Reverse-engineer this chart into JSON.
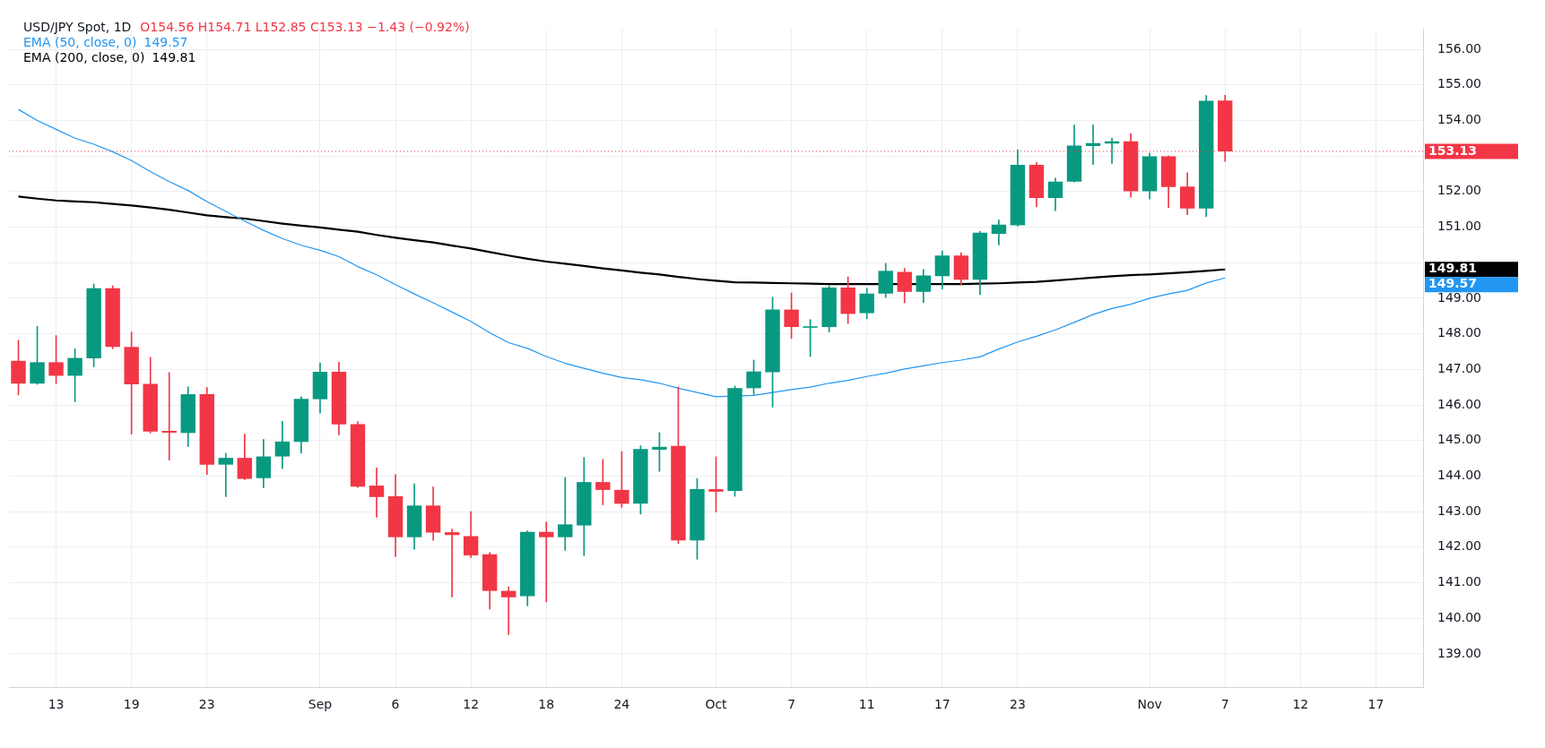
{
  "chart_data": {
    "type": "candlestick",
    "title": "USD/JPY Spot, 1D",
    "subtitle": "O154.56 H154.71 L152.85 C153.13 −1.43 (−0.92%)",
    "categories": [
      null,
      null,
      "13",
      null,
      null,
      null,
      "19",
      null,
      null,
      null,
      "23",
      null,
      null,
      null,
      null,
      null,
      "Sep",
      null,
      null,
      null,
      "6",
      null,
      null,
      null,
      "12",
      null,
      null,
      null,
      "18",
      null,
      null,
      null,
      "24",
      null,
      null,
      null,
      null,
      "Oct",
      null,
      null,
      null,
      "7",
      null,
      null,
      null,
      "11",
      null,
      null,
      null,
      "17",
      null,
      null,
      null,
      "23",
      null,
      null,
      null,
      null,
      null,
      null,
      "Nov",
      null,
      null,
      null,
      "7",
      null,
      null,
      null,
      "12",
      null,
      null,
      null,
      "17",
      null,
      null
    ],
    "ohlc": [
      [
        147.24,
        147.82,
        146.28,
        146.6
      ],
      [
        146.6,
        148.21,
        146.58,
        147.2
      ],
      [
        147.2,
        147.95,
        146.6,
        146.82
      ],
      [
        146.82,
        147.58,
        146.09,
        147.32
      ],
      [
        147.31,
        149.4,
        147.07,
        149.28
      ],
      [
        149.28,
        149.35,
        147.58,
        147.63
      ],
      [
        147.63,
        148.05,
        145.18,
        146.58
      ],
      [
        146.59,
        147.34,
        145.21,
        145.25
      ],
      [
        145.27,
        146.91,
        144.45,
        145.22
      ],
      [
        145.21,
        146.51,
        144.83,
        146.3
      ],
      [
        146.3,
        146.49,
        144.04,
        144.32
      ],
      [
        144.32,
        144.64,
        143.42,
        144.51
      ],
      [
        144.51,
        145.18,
        143.9,
        143.92
      ],
      [
        143.94,
        145.03,
        143.67,
        144.55
      ],
      [
        144.55,
        145.54,
        144.21,
        144.97
      ],
      [
        144.96,
        146.23,
        144.64,
        146.17
      ],
      [
        146.16,
        147.18,
        145.77,
        146.93
      ],
      [
        146.93,
        147.2,
        145.16,
        145.45
      ],
      [
        145.46,
        145.53,
        143.68,
        143.7
      ],
      [
        143.73,
        144.23,
        142.84,
        143.41
      ],
      [
        143.43,
        144.04,
        141.74,
        142.28
      ],
      [
        142.28,
        143.78,
        141.94,
        143.17
      ],
      [
        143.17,
        143.69,
        142.19,
        142.41
      ],
      [
        142.42,
        142.51,
        140.6,
        142.34
      ],
      [
        142.31,
        143.0,
        141.71,
        141.77
      ],
      [
        141.8,
        141.85,
        140.26,
        140.77
      ],
      [
        140.77,
        140.88,
        139.54,
        140.59
      ],
      [
        140.62,
        142.46,
        140.35,
        142.43
      ],
      [
        142.43,
        142.71,
        140.46,
        142.28
      ],
      [
        142.28,
        143.96,
        141.91,
        142.64
      ],
      [
        142.61,
        144.52,
        141.76,
        143.83
      ],
      [
        143.83,
        144.47,
        143.19,
        143.61
      ],
      [
        143.61,
        144.69,
        143.12,
        143.22
      ],
      [
        143.22,
        144.85,
        142.93,
        144.76
      ],
      [
        144.74,
        145.22,
        144.13,
        144.82
      ],
      [
        144.85,
        146.51,
        142.1,
        142.19
      ],
      [
        142.19,
        143.93,
        141.66,
        143.63
      ],
      [
        143.63,
        144.54,
        142.99,
        143.56
      ],
      [
        143.58,
        146.53,
        143.43,
        146.47
      ],
      [
        146.47,
        147.26,
        146.29,
        146.94
      ],
      [
        146.92,
        149.03,
        145.94,
        148.68
      ],
      [
        148.68,
        149.15,
        147.87,
        148.19
      ],
      [
        148.17,
        148.4,
        147.36,
        148.21
      ],
      [
        148.19,
        149.35,
        148.05,
        149.3
      ],
      [
        149.3,
        149.6,
        148.29,
        148.56
      ],
      [
        148.58,
        149.28,
        148.42,
        149.13
      ],
      [
        149.13,
        149.98,
        149.02,
        149.77
      ],
      [
        149.74,
        149.84,
        148.87,
        149.18
      ],
      [
        149.18,
        149.81,
        148.88,
        149.64
      ],
      [
        149.62,
        150.33,
        149.26,
        150.2
      ],
      [
        150.2,
        150.28,
        149.38,
        149.52
      ],
      [
        149.52,
        150.88,
        149.1,
        150.84
      ],
      [
        150.81,
        151.2,
        150.5,
        151.07
      ],
      [
        151.05,
        153.18,
        151.03,
        152.75
      ],
      [
        152.75,
        152.82,
        151.57,
        151.82
      ],
      [
        151.82,
        152.38,
        151.46,
        152.28
      ],
      [
        152.28,
        153.87,
        152.27,
        153.29
      ],
      [
        153.28,
        153.87,
        152.76,
        153.36
      ],
      [
        153.35,
        153.5,
        152.79,
        153.41
      ],
      [
        153.41,
        153.63,
        151.84,
        152.01
      ],
      [
        152.01,
        153.08,
        151.79,
        152.99
      ],
      [
        152.99,
        153.0,
        151.55,
        152.13
      ],
      [
        152.14,
        152.53,
        151.35,
        151.52
      ],
      [
        151.52,
        154.7,
        151.3,
        154.55
      ],
      [
        154.56,
        154.71,
        152.85,
        153.13
      ],
      null,
      null,
      null,
      null,
      null,
      null,
      null,
      null,
      null,
      null
    ],
    "colors": [
      "#f23645",
      "#089981",
      "#f23645",
      "#089981",
      "#089981",
      "#f23645",
      "#f23645",
      "#f23645",
      "#f23645",
      "#089981",
      "#f23645",
      "#089981",
      "#f23645",
      "#089981",
      "#089981",
      "#089981",
      "#089981",
      "#f23645",
      "#f23645",
      "#f23645",
      "#f23645",
      "#089981",
      "#f23645",
      "#f23645",
      "#f23645",
      "#f23645",
      "#f23645",
      "#089981",
      "#f23645",
      "#089981",
      "#089981",
      "#f23645",
      "#f23645",
      "#089981",
      "#089981",
      "#f23645",
      "#089981",
      "#f23645",
      "#089981",
      "#089981",
      "#089981",
      "#f23645",
      "#089981",
      "#089981",
      "#f23645",
      "#089981",
      "#089981",
      "#f23645",
      "#089981",
      "#089981",
      "#f23645",
      "#089981",
      "#089981",
      "#089981",
      "#f23645",
      "#089981",
      "#089981",
      "#089981",
      "#089981",
      "#f23645",
      "#089981",
      "#f23645",
      "#f23645",
      "#089981",
      "#f23645",
      null,
      null,
      null,
      null,
      null,
      null,
      null,
      null,
      null,
      null
    ],
    "series": [
      {
        "name": "EMA (50, close, 0)",
        "type": "line",
        "color": "#2196f3",
        "values": [
          154.31,
          154.0,
          153.75,
          153.5,
          153.33,
          153.12,
          152.87,
          152.56,
          152.28,
          152.03,
          151.72,
          151.44,
          151.17,
          150.91,
          150.68,
          150.49,
          150.35,
          150.17,
          149.89,
          149.66,
          149.38,
          149.12,
          148.87,
          148.61,
          148.35,
          148.03,
          147.75,
          147.59,
          147.36,
          147.17,
          147.03,
          146.89,
          146.77,
          146.71,
          146.61,
          146.47,
          146.35,
          146.23,
          null,
          146.27,
          146.35,
          146.43,
          146.5,
          146.61,
          146.69,
          146.8,
          146.89,
          147.01,
          147.1,
          147.19,
          147.26,
          147.35,
          147.57,
          147.77,
          147.93,
          148.11,
          148.32,
          148.54,
          148.71,
          148.83,
          149.0,
          149.12,
          149.22,
          149.43,
          149.57,
          null,
          null,
          null,
          null,
          null,
          null,
          null,
          null,
          null,
          null
        ]
      },
      {
        "name": "EMA (200, close, 0)",
        "type": "line",
        "color": "#000000",
        "values": [
          151.86,
          151.8,
          151.75,
          151.72,
          151.7,
          151.65,
          151.61,
          151.55,
          151.49,
          151.41,
          151.33,
          151.28,
          151.24,
          151.17,
          151.1,
          151.04,
          150.99,
          150.93,
          150.87,
          150.78,
          150.7,
          150.63,
          150.57,
          150.48,
          150.4,
          150.3,
          150.2,
          150.11,
          150.03,
          149.97,
          149.91,
          149.84,
          149.78,
          149.72,
          149.67,
          149.6,
          149.54,
          149.49,
          149.45,
          149.44,
          149.43,
          149.42,
          149.41,
          149.4,
          149.4,
          149.4,
          null,
          null,
          null,
          149.4,
          149.4,
          149.41,
          149.42,
          149.44,
          149.46,
          149.5,
          149.54,
          149.58,
          149.62,
          149.65,
          149.67,
          149.7,
          149.73,
          149.77,
          149.81,
          null,
          null,
          null,
          null,
          null,
          null,
          null,
          null,
          null,
          null
        ]
      }
    ],
    "ylim": [
      138.06,
      156.57
    ],
    "yticks": [
      {
        "value": 139,
        "label": "139.00"
      },
      {
        "value": 140,
        "label": "140.00"
      },
      {
        "value": 141,
        "label": "141.00"
      },
      {
        "value": 142,
        "label": "142.00"
      },
      {
        "value": 143,
        "label": "143.00"
      },
      {
        "value": 144,
        "label": "144.00"
      },
      {
        "value": 145,
        "label": "145.00"
      },
      {
        "value": 146,
        "label": "146.00"
      },
      {
        "value": 147,
        "label": "147.00"
      },
      {
        "value": 148,
        "label": "148.00"
      },
      {
        "value": 149,
        "label": "149.00"
      },
      {
        "value": 150,
        "label": null
      },
      {
        "value": 151,
        "label": "151.00"
      },
      {
        "value": 152,
        "label": "152.00"
      },
      {
        "value": 153,
        "label": null
      },
      {
        "value": 154,
        "label": "154.00"
      },
      {
        "value": 155,
        "label": "155.00"
      },
      {
        "value": 156,
        "label": "156.00"
      }
    ],
    "ref_lines": [
      {
        "axis": "y",
        "value": 153.13,
        "label": "153.13",
        "color": "#f23645",
        "line_style": "dotted"
      }
    ],
    "annotations": [
      "149.57",
      "149.81"
    ],
    "grid": true,
    "legend": "top left"
  }
}
